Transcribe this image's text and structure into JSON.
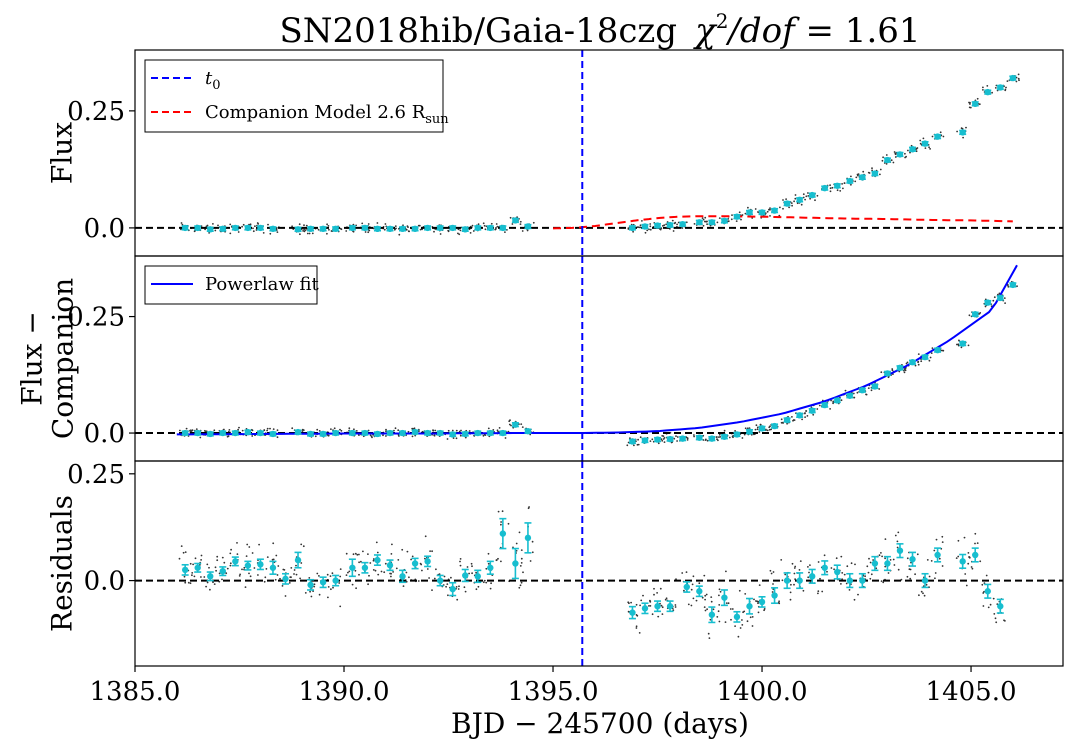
{
  "chart_data": {
    "type": "scatter",
    "title": {
      "prefix": "SN2018hib/Gaia-18czg",
      "chi": "χ",
      "chi_exp": "2",
      "dof": "/dof",
      "equals": " = 1.61"
    },
    "xlabel": "BJD − 245700 (days)",
    "xlim": [
      1385.0,
      1407.2
    ],
    "x_ticks": [
      "1385.0",
      "1390.0",
      "1395.0",
      "1400.0",
      "1405.0"
    ],
    "x_tick_values": [
      1385,
      1390,
      1395,
      1400,
      1405
    ],
    "t0": 1395.7,
    "panels": [
      {
        "id": "flux",
        "ylabel_lines": [
          "Flux"
        ],
        "ylim": [
          -0.06,
          0.38
        ],
        "y_ticks": [
          "0.0",
          "0.25"
        ],
        "y_tick_values": [
          0.0,
          0.25
        ],
        "legend": [
          {
            "label": "t",
            "sub": "0",
            "style": "dashed",
            "color": "#0000ff"
          },
          {
            "label": "Companion Model  2.6  R",
            "sub": "sun",
            "style": "dashed",
            "color": "#ff0000"
          }
        ],
        "binned": {
          "x": [
            1386.2,
            1386.5,
            1386.8,
            1387.1,
            1387.4,
            1387.7,
            1388.0,
            1388.3,
            1388.9,
            1389.2,
            1389.5,
            1389.8,
            1390.2,
            1390.5,
            1390.8,
            1391.1,
            1391.4,
            1391.7,
            1392.0,
            1392.3,
            1392.6,
            1392.9,
            1393.2,
            1393.5,
            1393.8,
            1394.1,
            1394.4,
            1396.9,
            1397.2,
            1397.5,
            1397.8,
            1398.1,
            1398.5,
            1398.8,
            1399.1,
            1399.4,
            1399.7,
            1400.0,
            1400.3,
            1400.6,
            1400.9,
            1401.2,
            1401.5,
            1401.8,
            1402.1,
            1402.4,
            1402.7,
            1403.0,
            1403.3,
            1403.6,
            1403.9,
            1404.2,
            1404.8,
            1405.1,
            1405.4,
            1405.7,
            1406.0
          ],
          "y": [
            0.0,
            0.0,
            -0.003,
            -0.002,
            0.0,
            0.0,
            0.0,
            -0.002,
            -0.003,
            -0.002,
            -0.002,
            -0.002,
            0.0,
            0.0,
            -0.002,
            -0.002,
            -0.002,
            -0.002,
            0.0,
            0.0,
            0.0,
            -0.003,
            0.0,
            0.0,
            0.0,
            0.016,
            0.003,
            0.0,
            0.003,
            0.005,
            0.006,
            0.008,
            0.012,
            0.012,
            0.015,
            0.024,
            0.033,
            0.033,
            0.037,
            0.052,
            0.06,
            0.07,
            0.085,
            0.09,
            0.1,
            0.108,
            0.116,
            0.145,
            0.157,
            0.168,
            0.18,
            0.195,
            0.204,
            0.265,
            0.29,
            0.3,
            0.32
          ]
        },
        "model_curve": {
          "color": "#ff0000",
          "x": [
            1395.0,
            1395.5,
            1396.0,
            1396.5,
            1397.0,
            1397.5,
            1398.0,
            1398.5,
            1399.0,
            1400.0,
            1401.0,
            1402.0,
            1403.0,
            1404.0,
            1405.0,
            1406.0
          ],
          "y": [
            -0.001,
            0.0,
            0.004,
            0.01,
            0.016,
            0.021,
            0.024,
            0.025,
            0.025,
            0.024,
            0.022,
            0.02,
            0.019,
            0.017,
            0.016,
            0.014
          ]
        }
      },
      {
        "id": "flux_minus_companion",
        "ylabel_lines": [
          "Flux −",
          "Companion"
        ],
        "ylim": [
          -0.06,
          0.38
        ],
        "y_ticks": [
          "0.0",
          "0.25"
        ],
        "y_tick_values": [
          0.0,
          0.25
        ],
        "legend": [
          {
            "label": "Powerlaw fit",
            "style": "solid",
            "color": "#0000ff"
          }
        ],
        "binned": {
          "x": [
            1386.2,
            1386.5,
            1386.8,
            1387.1,
            1387.4,
            1387.7,
            1388.0,
            1388.3,
            1388.9,
            1389.2,
            1389.5,
            1389.8,
            1390.2,
            1390.5,
            1390.8,
            1391.1,
            1391.4,
            1391.7,
            1392.0,
            1392.3,
            1392.6,
            1392.9,
            1393.2,
            1393.5,
            1393.8,
            1394.1,
            1394.4,
            1396.9,
            1397.2,
            1397.5,
            1397.8,
            1398.1,
            1398.5,
            1398.8,
            1399.1,
            1399.4,
            1399.7,
            1400.0,
            1400.3,
            1400.6,
            1400.9,
            1401.2,
            1401.5,
            1401.8,
            1402.1,
            1402.4,
            1402.7,
            1403.0,
            1403.3,
            1403.6,
            1403.9,
            1404.2,
            1404.8,
            1405.1,
            1405.4,
            1405.7,
            1406.0
          ],
          "y": [
            0.0,
            0.0,
            -0.002,
            0.0,
            0.0,
            0.002,
            0.0,
            -0.002,
            0.002,
            -0.002,
            -0.002,
            0.0,
            0.0,
            0.0,
            -0.002,
            0.0,
            0.0,
            0.002,
            0.0,
            0.0,
            -0.003,
            -0.002,
            0.0,
            0.0,
            0.0,
            0.018,
            0.004,
            -0.018,
            -0.016,
            -0.014,
            -0.013,
            -0.012,
            -0.01,
            -0.012,
            -0.008,
            -0.003,
            0.003,
            0.01,
            0.015,
            0.028,
            0.038,
            0.048,
            0.06,
            0.07,
            0.08,
            0.092,
            0.1,
            0.128,
            0.14,
            0.152,
            0.163,
            0.178,
            0.192,
            0.255,
            0.28,
            0.29,
            0.318
          ]
        },
        "model_curve": {
          "color": "#0000ff",
          "x": [
            1386.0,
            1388.0,
            1390.0,
            1392.0,
            1394.0,
            1395.7,
            1396.5,
            1397.5,
            1398.5,
            1399.5,
            1400.5,
            1401.5,
            1402.5,
            1403.5,
            1404.5,
            1405.5,
            1406.1
          ],
          "y": [
            -0.003,
            -0.002,
            -0.001,
            -0.001,
            0.0,
            0.0,
            0.001,
            0.004,
            0.011,
            0.024,
            0.042,
            0.068,
            0.102,
            0.146,
            0.2,
            0.264,
            0.36
          ]
        }
      },
      {
        "id": "residuals",
        "ylabel_lines": [
          "Residuals"
        ],
        "ylim": [
          -0.2,
          0.28
        ],
        "y_ticks": [
          "0.0",
          "0.25"
        ],
        "y_tick_values": [
          0.0,
          0.25
        ],
        "legend": [],
        "binned": {
          "x": [
            1386.2,
            1386.5,
            1386.8,
            1387.1,
            1387.4,
            1387.7,
            1388.0,
            1388.3,
            1388.6,
            1388.9,
            1389.2,
            1389.5,
            1389.8,
            1390.2,
            1390.5,
            1390.8,
            1391.1,
            1391.4,
            1391.7,
            1392.0,
            1392.3,
            1392.6,
            1392.9,
            1393.2,
            1393.5,
            1393.8,
            1394.1,
            1394.4,
            1396.9,
            1397.2,
            1397.5,
            1397.8,
            1398.2,
            1398.5,
            1398.8,
            1399.1,
            1399.4,
            1399.7,
            1400.0,
            1400.3,
            1400.6,
            1400.9,
            1401.2,
            1401.5,
            1401.8,
            1402.1,
            1402.4,
            1402.7,
            1403.0,
            1403.3,
            1403.6,
            1403.9,
            1404.2,
            1404.8,
            1405.1,
            1405.4,
            1405.7
          ],
          "y": [
            0.025,
            0.03,
            0.01,
            0.022,
            0.045,
            0.035,
            0.038,
            0.03,
            0.004,
            0.048,
            -0.01,
            -0.004,
            0.0,
            0.03,
            0.03,
            0.048,
            0.036,
            0.01,
            0.04,
            0.045,
            0.0,
            -0.02,
            0.012,
            0.01,
            0.03,
            0.11,
            0.04,
            0.1,
            -0.075,
            -0.065,
            -0.06,
            -0.06,
            -0.015,
            -0.025,
            -0.08,
            -0.04,
            -0.085,
            -0.06,
            -0.05,
            -0.035,
            0.0,
            0.0,
            0.01,
            0.03,
            0.02,
            0.0,
            0.0,
            0.04,
            0.04,
            0.07,
            0.05,
            0.0,
            0.06,
            0.045,
            0.06,
            -0.025,
            -0.06
          ],
          "err": [
            0.012,
            0.01,
            0.01,
            0.01,
            0.01,
            0.01,
            0.012,
            0.015,
            0.012,
            0.018,
            0.012,
            0.012,
            0.012,
            0.02,
            0.012,
            0.012,
            0.012,
            0.014,
            0.012,
            0.012,
            0.012,
            0.015,
            0.014,
            0.014,
            0.015,
            0.035,
            0.035,
            0.035,
            0.014,
            0.012,
            0.012,
            0.012,
            0.012,
            0.012,
            0.018,
            0.018,
            0.012,
            0.018,
            0.012,
            0.018,
            0.018,
            0.018,
            0.016,
            0.016,
            0.016,
            0.016,
            0.016,
            0.016,
            0.016,
            0.016,
            0.016,
            0.016,
            0.016,
            0.016,
            0.016,
            0.016,
            0.016
          ]
        },
        "model_curve": null
      }
    ],
    "colors": {
      "binned": "#17becf",
      "raw": "#333333",
      "zero_line": "#000000",
      "t0_line": "#0000ff"
    }
  }
}
